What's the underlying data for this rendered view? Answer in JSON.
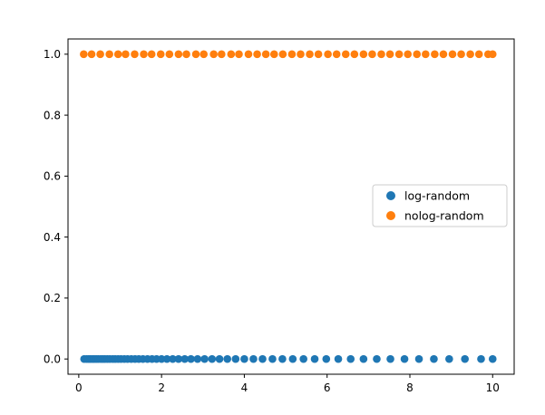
{
  "chart_data": {
    "type": "scatter",
    "title": "",
    "xlabel": "",
    "ylabel": "",
    "xlim": [
      -0.26,
      10.52
    ],
    "ylim": [
      -0.05,
      1.05
    ],
    "xticks": [
      0,
      2,
      4,
      6,
      8,
      10
    ],
    "yticks": [
      0.0,
      0.2,
      0.4,
      0.6,
      0.8,
      1.0
    ],
    "xtick_labels": [
      "0",
      "2",
      "4",
      "6",
      "8",
      "10"
    ],
    "ytick_labels": [
      "0.0",
      "0.2",
      "0.4",
      "0.6",
      "0.8",
      "1.0"
    ],
    "grid": false,
    "legend_position": "center-right",
    "series": [
      {
        "name": "log-random",
        "color": "#1f77b4",
        "y": 0,
        "x": [
          0.13,
          0.19,
          0.24,
          0.28,
          0.33,
          0.37,
          0.42,
          0.47,
          0.53,
          0.58,
          0.63,
          0.69,
          0.75,
          0.82,
          0.88,
          0.95,
          1.02,
          1.1,
          1.18,
          1.27,
          1.36,
          1.45,
          1.55,
          1.66,
          1.77,
          1.88,
          2.0,
          2.13,
          2.27,
          2.41,
          2.56,
          2.71,
          2.87,
          3.04,
          3.22,
          3.4,
          3.59,
          3.79,
          4.0,
          4.22,
          4.44,
          4.68,
          4.92,
          5.17,
          5.43,
          5.7,
          5.98,
          6.27,
          6.57,
          6.88,
          7.2,
          7.53,
          7.87,
          8.22,
          8.58,
          8.95,
          9.33,
          9.72,
          10.0
        ]
      },
      {
        "name": "nolog-random",
        "color": "#ff7f0e",
        "y": 1,
        "x": [
          0.12,
          0.31,
          0.52,
          0.74,
          0.95,
          1.13,
          1.35,
          1.57,
          1.76,
          1.98,
          2.19,
          2.41,
          2.6,
          2.83,
          3.02,
          3.26,
          3.45,
          3.68,
          3.87,
          4.1,
          4.31,
          4.52,
          4.72,
          4.93,
          5.15,
          5.36,
          5.58,
          5.79,
          6.02,
          6.23,
          6.45,
          6.66,
          6.88,
          7.09,
          7.31,
          7.52,
          7.74,
          7.95,
          8.17,
          8.38,
          8.6,
          8.81,
          9.03,
          9.24,
          9.46,
          9.67,
          9.89,
          10.0
        ]
      }
    ]
  }
}
